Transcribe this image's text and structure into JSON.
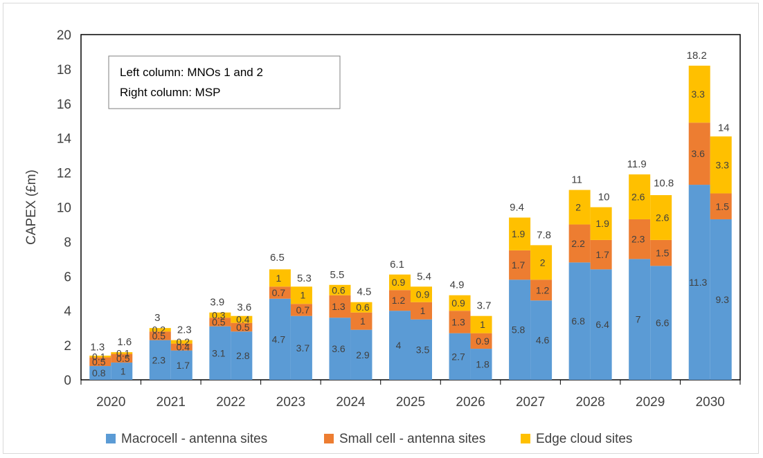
{
  "chart_data": {
    "type": "bar",
    "stacked": true,
    "categories": [
      "2020",
      "2021",
      "2022",
      "2023",
      "2024",
      "2025",
      "2026",
      "2027",
      "2028",
      "2029",
      "2030"
    ],
    "ylabel": "CAPEX (£m)",
    "xlabel": "",
    "ylim": [
      0,
      20
    ],
    "yticks": [
      0,
      2,
      4,
      6,
      8,
      10,
      12,
      14,
      16,
      18,
      20
    ],
    "grid": false,
    "legend_position": "bottom",
    "annotation": [
      "Left column: MNOs 1 and 2",
      "Right column: MSP"
    ],
    "groups": [
      "Left column",
      "Right column"
    ],
    "series": [
      {
        "name": "Macrocell - antenna sites",
        "color": "#5b9bd5",
        "left": [
          0.8,
          2.3,
          3.1,
          4.7,
          3.6,
          4.0,
          2.7,
          5.8,
          6.8,
          7.0,
          11.3
        ],
        "right": [
          1.0,
          1.7,
          2.8,
          3.7,
          2.9,
          3.5,
          1.8,
          4.6,
          6.4,
          6.6,
          9.3
        ]
      },
      {
        "name": "Small cell - antenna sites",
        "color": "#ed7d31",
        "left": [
          0.5,
          0.5,
          0.5,
          0.7,
          1.3,
          1.2,
          1.3,
          1.7,
          2.2,
          2.3,
          3.6
        ],
        "right": [
          0.5,
          0.4,
          0.5,
          0.7,
          1.0,
          1.0,
          0.9,
          1.2,
          1.7,
          1.5,
          1.5
        ]
      },
      {
        "name": "Edge cloud sites",
        "color": "#ffc000",
        "left": [
          0.1,
          0.2,
          0.3,
          1.0,
          0.6,
          0.9,
          0.9,
          1.9,
          2.0,
          2.6,
          3.3
        ],
        "right": [
          0.1,
          0.2,
          0.4,
          1.0,
          0.6,
          0.9,
          1.0,
          2.0,
          1.9,
          2.6,
          3.3
        ]
      }
    ],
    "totals": {
      "left": [
        1.3,
        3.0,
        3.9,
        6.5,
        5.5,
        6.1,
        4.9,
        9.4,
        11.0,
        11.9,
        18.2
      ],
      "right": [
        1.6,
        2.3,
        3.6,
        5.3,
        4.5,
        5.4,
        3.7,
        7.8,
        10.0,
        10.8,
        14.0
      ]
    }
  }
}
